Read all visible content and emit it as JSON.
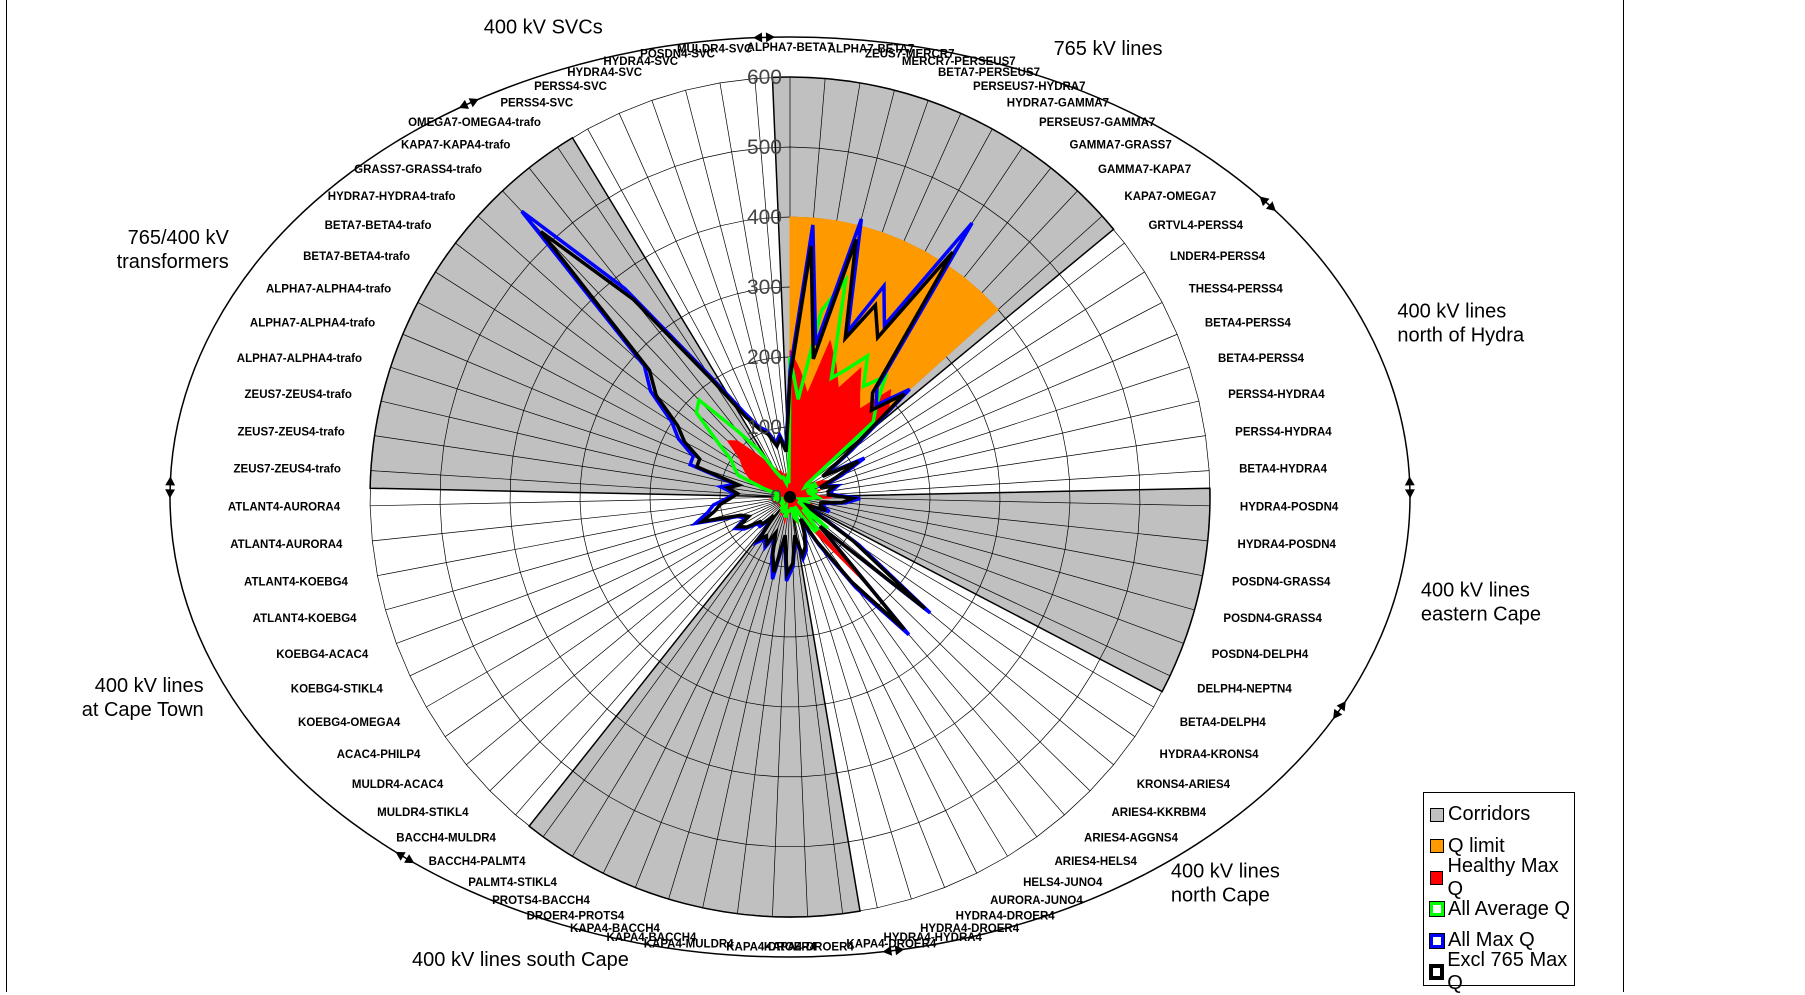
{
  "chart_data": {
    "type": "radar",
    "title": "",
    "r_axis": {
      "range": [
        0,
        600
      ],
      "ticks": [
        0,
        100,
        200,
        300,
        400,
        500,
        600
      ]
    },
    "spokes": [
      "ALPHA7-BETA7",
      "ALPHA7-BETA7",
      "ZEUS7-MERCR7",
      "MERCR7-PERSEUS7",
      "BETA7-PERSEUS7",
      "PERSEUS7-HYDRA7",
      "HYDRA7-GAMMA7",
      "PERSEUS7-GAMMA7",
      "GAMMA7-GRASS7",
      "GAMMA7-KAPA7",
      "KAPA7-OMEGA7",
      "GRTVL4-PERSS4",
      "LNDER4-PERSS4",
      "THESS4-PERSS4",
      "BETA4-PERSS4",
      "BETA4-PERSS4",
      "PERSS4-HYDRA4",
      "PERSS4-HYDRA4",
      "BETA4-HYDRA4",
      "HYDRA4-POSDN4",
      "HYDRA4-POSDN4",
      "POSDN4-GRASS4",
      "POSDN4-GRASS4",
      "POSDN4-DELPH4",
      "DELPH4-NEPTN4",
      "BETA4-DELPH4",
      "HYDRA4-KRONS4",
      "KRONS4-ARIES4",
      "ARIES4-KKRBM4",
      "ARIES4-AGGNS4",
      "ARIES4-HELS4",
      "HELS4-JUNO4",
      "AURORA-JUNO4",
      "HYDRA4-DROER4",
      "HYDRA4-DROER4",
      "HYDRA4-HYDRA4",
      "KAPA4-DROER4",
      "KAPA4-DROER4",
      "KAPA4-DROER4",
      "KAPA4-MULDR4",
      "KAPA4-BACCH4",
      "KAPA4-BACCH4",
      "DROER4-PROTS4",
      "PROTS4-BACCH4",
      "PALMT4-STIKL4",
      "BACCH4-PALMT4",
      "BACCH4-MULDR4",
      "MULDR4-STIKL4",
      "MULDR4-ACAC4",
      "ACAC4-PHILP4",
      "KOEBG4-OMEGA4",
      "KOEBG4-STIKL4",
      "KOEBG4-ACAC4",
      "ATLANT4-KOEBG4",
      "ATLANT4-KOEBG4",
      "ATLANT4-AURORA4",
      "ATLANT4-AURORA4",
      "ZEUS7-ZEUS4-trafo",
      "ZEUS7-ZEUS4-trafo",
      "ZEUS7-ZEUS4-trafo",
      "ALPHA7-ALPHA4-trafo",
      "ALPHA7-ALPHA4-trafo",
      "ALPHA7-ALPHA4-trafo",
      "BETA7-BETA4-trafo",
      "BETA7-BETA4-trafo",
      "HYDRA7-HYDRA4-trafo",
      "GRASS7-GRASS4-trafo",
      "KAPA7-KAPA4-trafo",
      "OMEGA7-OMEGA4-trafo",
      "PERSS4-SVC",
      "PERSS4-SVC",
      "HYDRA4-SVC",
      "HYDRA4-SVC",
      "POSDN4-SVC",
      "MULDR4-SVC"
    ],
    "label_display_overrides": {
      "56": "ATLANT4-AURORA4",
      "57": "ATLANT4-AURORA4",
      "33": "AURORA-JUNO4"
    },
    "groups": [
      {
        "name": "765 kV lines",
        "start": 0,
        "end": 10,
        "corridor": true
      },
      {
        "name": "400 kV lines north of Hydra",
        "start": 11,
        "end": 18,
        "corridor": false
      },
      {
        "name": "400 kV lines eastern Cape",
        "start": 19,
        "end": 24,
        "corridor": true
      },
      {
        "name": "400 kV lines north Cape",
        "start": 25,
        "end": 35,
        "corridor": false
      },
      {
        "name": "400 kV lines south Cape",
        "start": 36,
        "end": 45,
        "corridor": true
      },
      {
        "name": "400 kV lines at Cape Town",
        "start": 46,
        "end": 56,
        "corridor": false
      },
      {
        "name": "765/400 kV transformers",
        "start": 57,
        "end": 68,
        "corridor": true
      },
      {
        "name": "400 kV SVCs",
        "start": 69,
        "end": 74,
        "corridor": false
      }
    ],
    "group_labels": [
      {
        "lines": [
          "765 kV lines"
        ]
      },
      {
        "lines": [
          "400 kV lines",
          "north of Hydra"
        ]
      },
      {
        "lines": [
          "400 kV lines",
          "eastern Cape"
        ]
      },
      {
        "lines": [
          "400 kV lines",
          "north Cape"
        ]
      },
      {
        "lines": [
          "400 kV lines south Cape"
        ]
      },
      {
        "lines": [
          "400 kV lines",
          "at Cape Town"
        ]
      },
      {
        "lines": [
          "765/400 kV",
          "transformers"
        ]
      },
      {
        "lines": [
          "400 kV SVCs"
        ]
      }
    ],
    "series": [
      {
        "name": "Q limit",
        "color": "#FF9900",
        "fill": true,
        "values": [
          400,
          400,
          400,
          400,
          400,
          400,
          400,
          400,
          400,
          400,
          400,
          0,
          0,
          0,
          0,
          0,
          0,
          0,
          0,
          0,
          0,
          0,
          0,
          0,
          0,
          0,
          0,
          0,
          0,
          0,
          0,
          0,
          0,
          0,
          0,
          0,
          0,
          0,
          0,
          0,
          0,
          0,
          0,
          0,
          0,
          0,
          0,
          0,
          0,
          0,
          0,
          0,
          0,
          0,
          0,
          0,
          0,
          0,
          0,
          0,
          0,
          0,
          0,
          0,
          0,
          0,
          0,
          0,
          0,
          0,
          0,
          0,
          0,
          0,
          0
        ]
      },
      {
        "name": "Healthy Max Q",
        "color": "#FF0000",
        "fill": true,
        "values": [
          210,
          180,
          150,
          230,
          200,
          170,
          210,
          180,
          160,
          210,
          190,
          40,
          35,
          50,
          60,
          30,
          45,
          35,
          40,
          60,
          30,
          20,
          25,
          40,
          20,
          15,
          30,
          60,
          20,
          150,
          70,
          40,
          20,
          30,
          40,
          35,
          15,
          20,
          25,
          20,
          40,
          20,
          15,
          30,
          20,
          25,
          15,
          20,
          15,
          20,
          20,
          15,
          25,
          20,
          15,
          30,
          20,
          20,
          20,
          15,
          40,
          60,
          70,
          80,
          90,
          120,
          110,
          80,
          60,
          50,
          40,
          40,
          30,
          35,
          25
        ]
      },
      {
        "name": "All Average Q",
        "color": "#00FF00",
        "fill": false,
        "values": [
          200,
          140,
          270,
          320,
          180,
          200,
          230,
          190,
          220,
          180,
          160,
          30,
          25,
          40,
          40,
          25,
          40,
          30,
          35,
          40,
          25,
          15,
          20,
          30,
          15,
          15,
          25,
          70,
          25,
          60,
          60,
          30,
          15,
          25,
          35,
          30,
          15,
          20,
          20,
          20,
          30,
          20,
          15,
          25,
          20,
          20,
          15,
          15,
          10,
          15,
          15,
          15,
          20,
          15,
          10,
          25,
          20,
          20,
          20,
          15,
          40,
          80,
          90,
          100,
          130,
          180,
          190,
          120,
          80,
          40,
          30,
          30,
          20,
          25,
          20
        ]
      },
      {
        "name": "All Max Q",
        "color": "#0000FF",
        "fill": false,
        "values": [
          180,
          390,
          220,
          410,
          250,
          330,
          280,
          470,
          200,
          180,
          230,
          110,
          60,
          120,
          80,
          50,
          70,
          60,
          60,
          100,
          80,
          50,
          50,
          60,
          30,
          40,
          120,
          260,
          60,
          260,
          160,
          80,
          40,
          60,
          80,
          90,
          60,
          100,
          120,
          60,
          120,
          90,
          60,
          80,
          70,
          80,
          40,
          60,
          60,
          80,
          90,
          70,
          80,
          140,
          120,
          110,
          90,
          80,
          100,
          80,
          150,
          150,
          180,
          200,
          250,
          280,
          560,
          380,
          210,
          140,
          110,
          100,
          80,
          90,
          70
        ]
      },
      {
        "name": "Excl 765 Max Q",
        "color": "#000000",
        "fill": false,
        "values": [
          170,
          360,
          200,
          380,
          240,
          300,
          260,
          420,
          190,
          170,
          220,
          100,
          55,
          110,
          70,
          45,
          65,
          55,
          55,
          90,
          75,
          45,
          45,
          55,
          28,
          35,
          110,
          250,
          60,
          250,
          150,
          75,
          35,
          55,
          75,
          85,
          55,
          95,
          110,
          55,
          110,
          85,
          55,
          75,
          65,
          75,
          35,
          55,
          55,
          75,
          85,
          65,
          75,
          130,
          110,
          100,
          85,
          75,
          90,
          75,
          140,
          140,
          170,
          190,
          240,
          270,
          520,
          360,
          200,
          130,
          105,
          95,
          75,
          85,
          65
        ]
      }
    ],
    "legend": [
      {
        "label": "Corridors",
        "color": "#C0C0C0",
        "style": "box"
      },
      {
        "label": "Q limit",
        "color": "#FF9900",
        "style": "box"
      },
      {
        "label": "Healthy Max Q",
        "color": "#FF0000",
        "style": "box"
      },
      {
        "label": "All Average Q",
        "color": "#00FF00",
        "style": "hollow"
      },
      {
        "label": "All Max Q",
        "color": "#0000FF",
        "style": "hollow"
      },
      {
        "label": "Excl 765 Max Q",
        "color": "#000000",
        "style": "hollow"
      }
    ],
    "legend_position": "bottom-right"
  }
}
